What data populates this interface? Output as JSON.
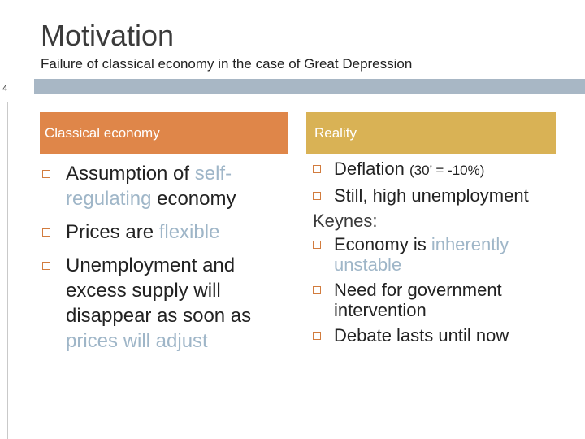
{
  "slide": {
    "title": "Motivation",
    "subtitle": "Failure of classical economy in the case of Great Depression",
    "page_number": "4"
  },
  "left_column": {
    "header": "Classical economy",
    "items": [
      {
        "parts": [
          "Assumption of ",
          "self-regulating",
          " economy"
        ]
      },
      {
        "parts": [
          "Prices are ",
          "flexible",
          ""
        ]
      },
      {
        "parts": [
          "Unemployment and excess supply will disappear as soon as ",
          "prices will adjust",
          ""
        ]
      }
    ]
  },
  "right_column": {
    "header": "Reality",
    "items": [
      {
        "text": "Deflation ",
        "small": "(30’ = -10%)"
      },
      {
        "text": "Still, high unemployment"
      }
    ],
    "keynes_label": "Keynes:",
    "keynes_items": [
      {
        "parts": [
          "Economy is ",
          "inherently unstable",
          ""
        ]
      },
      {
        "parts": [
          "Need for government intervention",
          "",
          ""
        ]
      },
      {
        "parts": [
          "Debate lasts until now",
          "",
          ""
        ]
      }
    ]
  },
  "colors": {
    "left_header": "#df8649",
    "right_header": "#d9b255",
    "highlight_text": "#9fb6c8",
    "rule_bar": "#a8b7c5",
    "bullet": "#d27c3e"
  },
  "icons": {
    "bullet": "hollow-square-bullet-icon"
  }
}
